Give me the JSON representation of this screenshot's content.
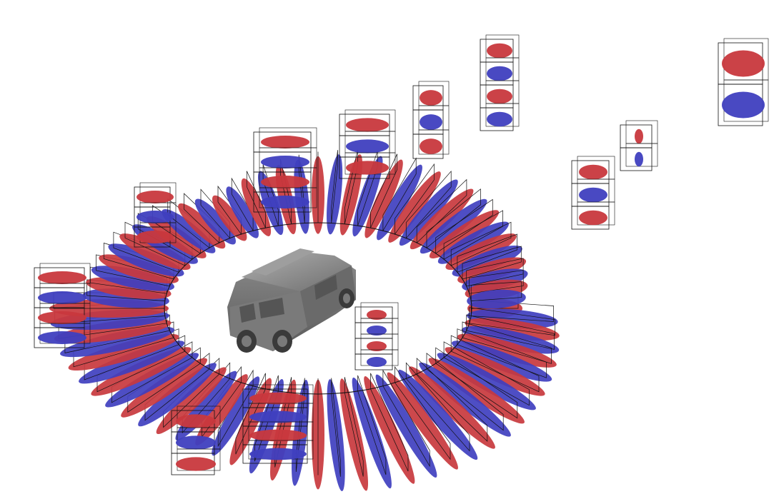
{
  "scene": {
    "subject": "car",
    "colors": {
      "lobe_red": "#c8383d",
      "lobe_blue": "#3f3fbf",
      "cage": "#111111",
      "car_body": "#8a8a8a",
      "background": "#ffffff"
    }
  }
}
